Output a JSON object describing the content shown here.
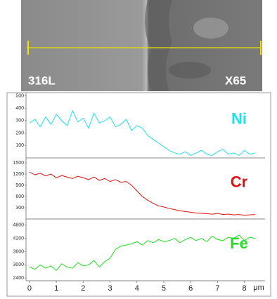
{
  "image": {
    "labels": [
      "316L",
      "X65"
    ]
  },
  "chart_data": [
    {
      "type": "line",
      "x": [
        0,
        0.2,
        0.4,
        0.6,
        0.8,
        1,
        1.2,
        1.4,
        1.6,
        1.8,
        2,
        2.2,
        2.4,
        2.6,
        2.8,
        3,
        3.2,
        3.4,
        3.6,
        3.8,
        4,
        4.2,
        4.4,
        4.6,
        4.8,
        5,
        5.2,
        5.4,
        5.6,
        5.8,
        6,
        6.2,
        6.4,
        6.6,
        6.8,
        7,
        7.2,
        7.4,
        7.6,
        7.8,
        8,
        8.2,
        8.4
      ],
      "series": [
        {
          "name": "Ni",
          "color": "#22e0e8",
          "values": [
            280,
            310,
            250,
            330,
            270,
            350,
            300,
            260,
            380,
            290,
            320,
            240,
            360,
            280,
            300,
            330,
            250,
            270,
            310,
            220,
            260,
            240,
            180,
            150,
            120,
            90,
            60,
            40,
            30,
            50,
            20,
            40,
            60,
            30,
            20,
            50,
            70,
            30,
            40,
            20,
            60,
            30,
            40
          ]
        }
      ],
      "xlim": [
        -0.13,
        8.77
      ],
      "ylim": [
        0,
        525
      ],
      "yticks": [
        100,
        200,
        300,
        400,
        500
      ]
    },
    {
      "type": "line",
      "x": [
        0,
        0.2,
        0.4,
        0.6,
        0.8,
        1,
        1.2,
        1.4,
        1.6,
        1.8,
        2,
        2.2,
        2.4,
        2.6,
        2.8,
        3,
        3.2,
        3.4,
        3.6,
        3.8,
        4,
        4.2,
        4.4,
        4.6,
        4.8,
        5,
        5.2,
        5.4,
        5.6,
        5.8,
        6,
        6.2,
        6.4,
        6.6,
        6.8,
        7,
        7.2,
        7.4,
        7.6,
        7.8,
        8,
        8.2,
        8.4
      ],
      "series": [
        {
          "name": "Cr",
          "color": "#e01010",
          "values": [
            1250,
            1180,
            1220,
            1150,
            1200,
            1100,
            1160,
            1120,
            1080,
            1140,
            1100,
            1050,
            1120,
            1030,
            1080,
            1000,
            1050,
            980,
            1000,
            900,
            750,
            600,
            500,
            420,
            350,
            320,
            280,
            250,
            220,
            200,
            180,
            160,
            150,
            140,
            130,
            150,
            120,
            130,
            110,
            120,
            100,
            110,
            120
          ]
        }
      ],
      "xlim": [
        -0.13,
        8.77
      ],
      "ylim": [
        0,
        1630
      ],
      "yticks": [
        300,
        600,
        900,
        1200,
        1500
      ]
    },
    {
      "type": "line",
      "x": [
        0,
        0.2,
        0.4,
        0.6,
        0.8,
        1,
        1.2,
        1.4,
        1.6,
        1.8,
        2,
        2.2,
        2.4,
        2.6,
        2.8,
        3,
        3.2,
        3.4,
        3.6,
        3.8,
        4,
        4.2,
        4.4,
        4.6,
        4.8,
        5,
        5.2,
        5.4,
        5.6,
        5.8,
        6,
        6.2,
        6.4,
        6.6,
        6.8,
        7,
        7.2,
        7.4,
        7.6,
        7.8,
        8,
        8.2,
        8.4
      ],
      "series": [
        {
          "name": "Fe",
          "color": "#22dd22",
          "values": [
            2900,
            2800,
            3000,
            2850,
            2950,
            2750,
            3050,
            2900,
            2850,
            3100,
            2950,
            3000,
            3200,
            2900,
            3150,
            3300,
            3700,
            3850,
            3900,
            3950,
            4050,
            3900,
            4100,
            4000,
            4150,
            4050,
            4100,
            4200,
            4000,
            4150,
            4250,
            4100,
            4200,
            4050,
            4300,
            4150,
            4100,
            4250,
            4200,
            4350,
            4100,
            4250,
            4200
          ]
        }
      ],
      "xlim": [
        -0.13,
        8.77
      ],
      "ylim": [
        2280,
        5080
      ],
      "yticks": [
        2400,
        3000,
        3600,
        4200,
        4800
      ],
      "xticks": [
        0,
        1,
        2,
        3,
        4,
        5,
        6,
        7,
        8
      ],
      "xlabel": "μm"
    }
  ]
}
